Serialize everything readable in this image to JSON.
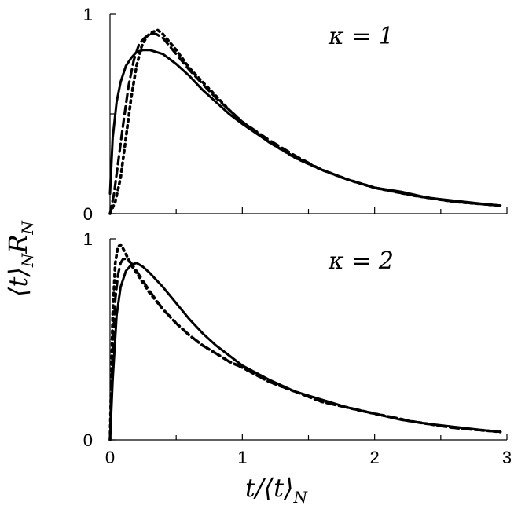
{
  "chart_data": [
    {
      "type": "line",
      "panel": "top",
      "annotation": "κ = 1",
      "xlim": [
        0,
        3
      ],
      "ylim": [
        0,
        1
      ],
      "yticks": [
        0,
        0.5,
        1
      ],
      "ytick_labels": [
        "0",
        "",
        "1"
      ],
      "series": [
        {
          "style": "solid",
          "x": [
            0,
            0.02,
            0.05,
            0.08,
            0.12,
            0.16,
            0.2,
            0.25,
            0.3,
            0.4,
            0.5,
            0.6,
            0.7,
            0.8,
            0.9,
            1.0,
            1.2,
            1.4,
            1.6,
            1.8,
            2.0,
            2.2,
            2.4,
            2.6,
            2.8,
            2.95
          ],
          "y": [
            0.1,
            0.38,
            0.56,
            0.66,
            0.74,
            0.78,
            0.81,
            0.82,
            0.82,
            0.8,
            0.75,
            0.69,
            0.62,
            0.56,
            0.5,
            0.45,
            0.36,
            0.28,
            0.22,
            0.17,
            0.13,
            0.11,
            0.08,
            0.065,
            0.05,
            0.04
          ]
        },
        {
          "style": "dashed",
          "x": [
            0,
            0.03,
            0.06,
            0.1,
            0.14,
            0.18,
            0.22,
            0.26,
            0.3,
            0.35,
            0.4,
            0.5,
            0.6,
            0.7,
            0.8,
            0.9,
            1.0,
            1.2,
            1.4,
            1.6,
            1.8,
            2.0,
            2.3,
            2.6,
            2.95
          ],
          "y": [
            0.0,
            0.1,
            0.25,
            0.45,
            0.64,
            0.77,
            0.85,
            0.88,
            0.9,
            0.9,
            0.88,
            0.8,
            0.72,
            0.65,
            0.58,
            0.52,
            0.46,
            0.37,
            0.29,
            0.22,
            0.17,
            0.13,
            0.09,
            0.06,
            0.04
          ]
        },
        {
          "style": "dotted",
          "x": [
            0,
            0.04,
            0.08,
            0.12,
            0.16,
            0.2,
            0.24,
            0.28,
            0.32,
            0.36,
            0.4,
            0.5,
            0.6,
            0.7,
            0.8,
            0.9,
            1.0,
            1.2,
            1.4,
            1.6,
            1.8,
            2.0,
            2.3,
            2.6,
            2.95
          ],
          "y": [
            0.0,
            0.06,
            0.18,
            0.38,
            0.58,
            0.74,
            0.84,
            0.89,
            0.91,
            0.92,
            0.9,
            0.82,
            0.73,
            0.66,
            0.59,
            0.52,
            0.46,
            0.36,
            0.28,
            0.22,
            0.17,
            0.13,
            0.09,
            0.06,
            0.04
          ]
        }
      ]
    },
    {
      "type": "line",
      "panel": "bottom",
      "annotation": "κ = 2",
      "xlim": [
        0,
        3
      ],
      "ylim": [
        0,
        1
      ],
      "xticks": [
        0,
        0.5,
        1,
        1.5,
        2,
        2.5,
        3
      ],
      "xtick_labels": [
        "0",
        "",
        "1",
        "",
        "2",
        "",
        "3"
      ],
      "yticks": [
        0,
        0.5,
        1
      ],
      "ytick_labels": [
        "0",
        "",
        "1"
      ],
      "xlabel": "t/⟨t⟩",
      "xlabel_sub": "N",
      "ylabel": "⟨t⟩",
      "ylabel_sub1": "N",
      "ylabel_mid": "R",
      "ylabel_sub2": "N",
      "series": [
        {
          "style": "solid",
          "x": [
            0,
            0.02,
            0.05,
            0.08,
            0.12,
            0.16,
            0.2,
            0.25,
            0.3,
            0.4,
            0.5,
            0.6,
            0.7,
            0.8,
            0.9,
            1.0,
            1.2,
            1.4,
            1.6,
            1.8,
            2.0,
            2.2,
            2.4,
            2.6,
            2.8,
            2.95
          ],
          "y": [
            0.0,
            0.3,
            0.62,
            0.76,
            0.84,
            0.87,
            0.88,
            0.86,
            0.83,
            0.76,
            0.68,
            0.6,
            0.53,
            0.47,
            0.42,
            0.37,
            0.3,
            0.24,
            0.2,
            0.16,
            0.13,
            0.1,
            0.08,
            0.065,
            0.05,
            0.04
          ]
        },
        {
          "style": "dashed",
          "x": [
            0,
            0.02,
            0.04,
            0.06,
            0.08,
            0.1,
            0.13,
            0.16,
            0.2,
            0.25,
            0.3,
            0.4,
            0.5,
            0.6,
            0.7,
            0.8,
            0.9,
            1.0,
            1.2,
            1.4,
            1.6,
            1.8,
            2.0,
            2.3,
            2.6,
            2.95
          ],
          "y": [
            0.0,
            0.45,
            0.7,
            0.82,
            0.88,
            0.9,
            0.9,
            0.88,
            0.84,
            0.79,
            0.74,
            0.65,
            0.58,
            0.52,
            0.47,
            0.43,
            0.39,
            0.36,
            0.29,
            0.24,
            0.19,
            0.16,
            0.13,
            0.09,
            0.06,
            0.04
          ]
        },
        {
          "style": "dotted",
          "x": [
            0,
            0.02,
            0.04,
            0.06,
            0.08,
            0.1,
            0.13,
            0.16,
            0.2,
            0.25,
            0.3,
            0.4,
            0.5,
            0.6,
            0.7,
            0.8,
            0.9,
            1.0,
            1.2,
            1.4,
            1.6,
            1.8,
            2.0,
            2.3,
            2.6,
            2.95
          ],
          "y": [
            0.0,
            0.62,
            0.88,
            0.96,
            0.97,
            0.95,
            0.91,
            0.87,
            0.83,
            0.78,
            0.73,
            0.65,
            0.58,
            0.52,
            0.47,
            0.43,
            0.39,
            0.36,
            0.29,
            0.24,
            0.19,
            0.16,
            0.13,
            0.09,
            0.06,
            0.04
          ]
        }
      ]
    }
  ]
}
